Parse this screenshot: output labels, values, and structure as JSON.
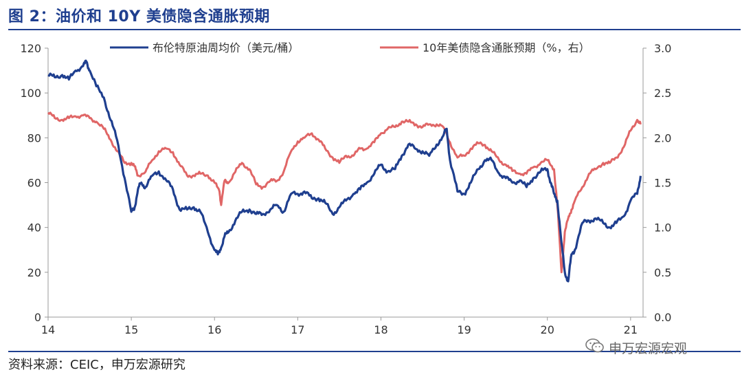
{
  "page": {
    "title": "图 2：油价和 10Y 美债隐含通胀预期",
    "source": "资料来源：CEIC，申万宏源研究",
    "watermark": "申万宏源宏观",
    "watermark_icon": "wechat-icon"
  },
  "chart_data": {
    "type": "line",
    "xlabel": "",
    "ylabel": "",
    "x_ticks": [
      "14",
      "15",
      "16",
      "17",
      "18",
      "19",
      "20",
      "21"
    ],
    "xlim": [
      2014.0,
      2021.15
    ],
    "ylim_left": [
      0,
      120
    ],
    "yticks_left": [
      "0",
      "20",
      "40",
      "60",
      "80",
      "100",
      "120"
    ],
    "ylim_right": [
      0.0,
      3.0
    ],
    "yticks_right": [
      "0.0",
      "0.5",
      "1.0",
      "1.5",
      "2.0",
      "2.5",
      "3.0"
    ],
    "grid": false,
    "legend_position": "top-center",
    "series": [
      {
        "name": "布伦特原油周均价（美元/桶）",
        "axis": "left",
        "color": "#1f3f8f",
        "x": [
          2014.0,
          2014.08,
          2014.17,
          2014.25,
          2014.33,
          2014.42,
          2014.46,
          2014.5,
          2014.58,
          2014.67,
          2014.75,
          2014.83,
          2014.92,
          2015.0,
          2015.04,
          2015.08,
          2015.12,
          2015.17,
          2015.25,
          2015.33,
          2015.42,
          2015.5,
          2015.58,
          2015.67,
          2015.75,
          2015.83,
          2015.92,
          2016.0,
          2016.04,
          2016.08,
          2016.12,
          2016.17,
          2016.25,
          2016.33,
          2016.42,
          2016.5,
          2016.58,
          2016.67,
          2016.75,
          2016.83,
          2016.92,
          2017.0,
          2017.08,
          2017.17,
          2017.25,
          2017.33,
          2017.42,
          2017.5,
          2017.58,
          2017.67,
          2017.75,
          2017.83,
          2017.92,
          2018.0,
          2018.08,
          2018.17,
          2018.25,
          2018.33,
          2018.42,
          2018.5,
          2018.58,
          2018.67,
          2018.75,
          2018.79,
          2018.83,
          2018.92,
          2019.0,
          2019.08,
          2019.17,
          2019.25,
          2019.33,
          2019.42,
          2019.5,
          2019.58,
          2019.67,
          2019.75,
          2019.83,
          2019.92,
          2020.0,
          2020.04,
          2020.08,
          2020.12,
          2020.17,
          2020.21,
          2020.25,
          2020.29,
          2020.33,
          2020.42,
          2020.5,
          2020.58,
          2020.67,
          2020.75,
          2020.83,
          2020.92,
          2021.0,
          2021.08,
          2021.12
        ],
        "values": [
          108,
          107,
          108,
          106,
          110,
          112,
          114,
          110,
          103,
          98,
          88,
          79,
          62,
          47,
          49,
          57,
          60,
          58,
          63,
          65,
          61,
          57,
          48,
          48,
          49,
          47,
          38,
          30,
          28,
          31,
          36,
          38,
          43,
          47,
          48,
          46,
          46,
          48,
          50,
          47,
          55,
          55,
          56,
          53,
          53,
          51,
          46,
          49,
          52,
          55,
          57,
          60,
          64,
          68,
          65,
          66,
          72,
          77,
          75,
          74,
          72,
          77,
          81,
          84,
          70,
          56,
          55,
          60,
          66,
          70,
          70,
          64,
          62,
          60,
          61,
          58,
          62,
          65,
          66,
          60,
          55,
          52,
          33,
          20,
          16,
          28,
          30,
          42,
          43,
          44,
          42,
          40,
          42,
          45,
          52,
          55,
          63
        ]
      },
      {
        "name": "10年美债隐含通胀预期（%，右）",
        "axis": "right",
        "color": "#e06666",
        "x": [
          2014.0,
          2014.08,
          2014.17,
          2014.25,
          2014.33,
          2014.42,
          2014.5,
          2014.58,
          2014.67,
          2014.75,
          2014.83,
          2014.92,
          2015.0,
          2015.04,
          2015.08,
          2015.17,
          2015.25,
          2015.33,
          2015.42,
          2015.5,
          2015.58,
          2015.67,
          2015.75,
          2015.83,
          2015.92,
          2016.0,
          2016.06,
          2016.08,
          2016.12,
          2016.17,
          2016.25,
          2016.33,
          2016.42,
          2016.5,
          2016.58,
          2016.67,
          2016.75,
          2016.83,
          2016.92,
          2017.0,
          2017.08,
          2017.17,
          2017.25,
          2017.33,
          2017.42,
          2017.5,
          2017.58,
          2017.67,
          2017.75,
          2017.83,
          2017.92,
          2018.0,
          2018.08,
          2018.17,
          2018.25,
          2018.33,
          2018.42,
          2018.5,
          2018.58,
          2018.67,
          2018.75,
          2018.83,
          2018.92,
          2019.0,
          2019.08,
          2019.17,
          2019.25,
          2019.33,
          2019.42,
          2019.5,
          2019.58,
          2019.67,
          2019.75,
          2019.83,
          2019.92,
          2020.0,
          2020.08,
          2020.12,
          2020.17,
          2020.21,
          2020.25,
          2020.29,
          2020.33,
          2020.42,
          2020.5,
          2020.58,
          2020.67,
          2020.75,
          2020.83,
          2020.92,
          2021.0,
          2021.08,
          2021.12
        ],
        "values": [
          2.28,
          2.22,
          2.2,
          2.22,
          2.24,
          2.25,
          2.22,
          2.18,
          2.1,
          1.98,
          1.85,
          1.72,
          1.72,
          1.68,
          1.58,
          1.62,
          1.75,
          1.85,
          1.88,
          1.84,
          1.7,
          1.58,
          1.58,
          1.6,
          1.58,
          1.5,
          1.4,
          1.25,
          1.52,
          1.5,
          1.62,
          1.72,
          1.65,
          1.48,
          1.45,
          1.52,
          1.52,
          1.62,
          1.85,
          1.96,
          2.0,
          2.05,
          1.98,
          1.88,
          1.78,
          1.72,
          1.8,
          1.8,
          1.88,
          1.88,
          1.95,
          2.05,
          2.1,
          2.12,
          2.18,
          2.18,
          2.15,
          2.12,
          2.15,
          2.15,
          2.12,
          1.95,
          1.78,
          1.8,
          1.88,
          1.94,
          1.92,
          1.85,
          1.75,
          1.7,
          1.63,
          1.6,
          1.6,
          1.67,
          1.72,
          1.75,
          1.65,
          1.25,
          0.5,
          0.95,
          1.1,
          1.2,
          1.3,
          1.45,
          1.6,
          1.65,
          1.72,
          1.72,
          1.78,
          1.9,
          2.08,
          2.2,
          2.15
        ]
      }
    ]
  }
}
